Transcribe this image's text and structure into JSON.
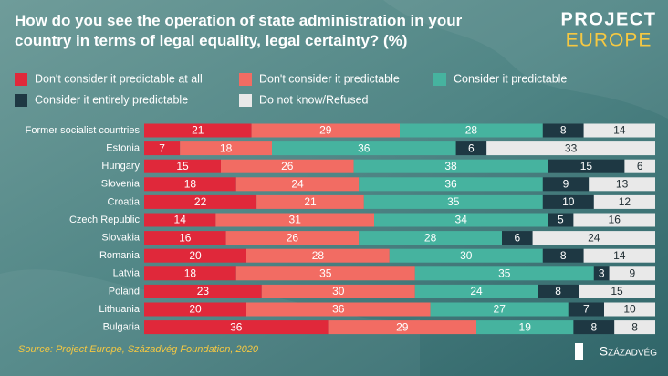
{
  "chart_data": {
    "type": "bar",
    "orientation": "horizontal",
    "stacked": true,
    "title": "How do you see the operation of state administration in your country in terms of legal equality, legal certainty? (%)",
    "source": "Source: Project Europe, Századvég Foundation, 2020",
    "logo": {
      "line1": "PROJECT",
      "line2": "EUROPE"
    },
    "brand": "Századvég",
    "xlim": [
      0,
      100
    ],
    "categories": [
      "Former socialist countries",
      "Estonia",
      "Hungary",
      "Slovenia",
      "Croatia",
      "Czech Republic",
      "Slovakia",
      "Romania",
      "Latvia",
      "Poland",
      "Lithuania",
      "Bulgaria"
    ],
    "series": [
      {
        "name": "Don't consider it predictable at all",
        "color": "#e0283a",
        "values": [
          21,
          7,
          15,
          18,
          22,
          14,
          16,
          20,
          18,
          23,
          20,
          36
        ]
      },
      {
        "name": "Don't consider it predictable",
        "color": "#f26c63",
        "values": [
          29,
          18,
          26,
          24,
          21,
          31,
          26,
          28,
          35,
          30,
          36,
          29
        ]
      },
      {
        "name": "Consider it predictable",
        "color": "#46b39f",
        "values": [
          28,
          36,
          38,
          36,
          35,
          34,
          28,
          30,
          35,
          24,
          27,
          19
        ]
      },
      {
        "name": "Consider it entirely predictable",
        "color": "#1e3843",
        "values": [
          8,
          6,
          15,
          9,
          10,
          5,
          6,
          8,
          3,
          8,
          7,
          8
        ]
      },
      {
        "name": "Do not know/Refused",
        "color": "#e9e9e9",
        "values": [
          14,
          33,
          6,
          13,
          12,
          16,
          24,
          14,
          9,
          15,
          10,
          8
        ]
      }
    ]
  }
}
